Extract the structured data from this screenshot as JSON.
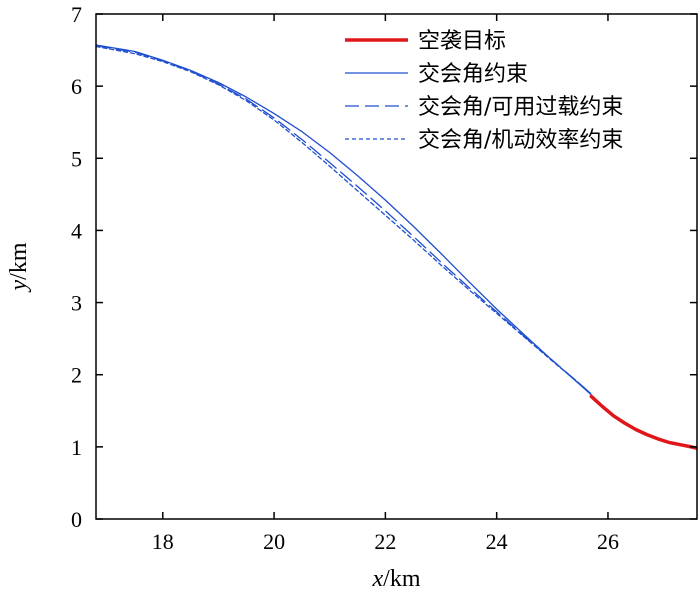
{
  "chart_data": {
    "type": "line",
    "xlabel_var": "x",
    "xlabel_unit": "/km",
    "ylabel_var": "y",
    "ylabel_unit": "/km",
    "xlim": [
      16.8,
      27.6
    ],
    "ylim": [
      0,
      7
    ],
    "xticks": [
      18,
      20,
      22,
      24,
      26
    ],
    "yticks": [
      0,
      1,
      2,
      3,
      4,
      5,
      6,
      7
    ],
    "legend_position": "top-right",
    "series": [
      {
        "name": "空袭目标",
        "color": "#e0161b",
        "style": "solid-thick",
        "x": [
          25.7,
          25.9,
          26.1,
          26.3,
          26.5,
          26.7,
          26.9,
          27.1,
          27.3,
          27.5,
          27.6
        ],
        "y": [
          1.7,
          1.56,
          1.43,
          1.33,
          1.24,
          1.17,
          1.11,
          1.06,
          1.03,
          1.0,
          0.98
        ]
      },
      {
        "name": "交会角约束",
        "color": "#1f4fd1",
        "style": "solid",
        "x": [
          16.8,
          17.5,
          18.0,
          18.5,
          19.0,
          19.5,
          20.0,
          20.5,
          21.0,
          21.5,
          22.0,
          22.5,
          23.0,
          23.5,
          24.0,
          24.5,
          25.0,
          25.5,
          25.7
        ],
        "y": [
          6.57,
          6.48,
          6.36,
          6.22,
          6.05,
          5.85,
          5.62,
          5.37,
          5.08,
          4.76,
          4.42,
          4.06,
          3.68,
          3.29,
          2.91,
          2.55,
          2.2,
          1.86,
          1.72
        ]
      },
      {
        "name": "交会角/可用过载约束",
        "color": "#1f4fd1",
        "style": "long-dash",
        "x": [
          16.8,
          17.5,
          18.0,
          18.5,
          19.0,
          19.5,
          20.0,
          20.5,
          21.0,
          21.5,
          22.0,
          22.5,
          23.0,
          23.5,
          24.0,
          24.5,
          25.0,
          25.5,
          25.7
        ],
        "y": [
          6.56,
          6.47,
          6.35,
          6.21,
          6.03,
          5.82,
          5.56,
          5.26,
          4.94,
          4.61,
          4.27,
          3.92,
          3.56,
          3.21,
          2.87,
          2.53,
          2.2,
          1.87,
          1.73
        ]
      },
      {
        "name": "交会角/机动效率约束",
        "color": "#1f4fd1",
        "style": "short-dash",
        "x": [
          16.8,
          17.5,
          18.0,
          18.5,
          19.0,
          19.5,
          20.0,
          20.5,
          21.0,
          21.5,
          22.0,
          22.5,
          23.0,
          23.5,
          24.0,
          24.5,
          25.0,
          25.5,
          25.7
        ],
        "y": [
          6.55,
          6.45,
          6.34,
          6.2,
          6.02,
          5.8,
          5.53,
          5.22,
          4.89,
          4.55,
          4.21,
          3.87,
          3.52,
          3.18,
          2.85,
          2.52,
          2.19,
          1.87,
          1.73
        ]
      }
    ]
  }
}
